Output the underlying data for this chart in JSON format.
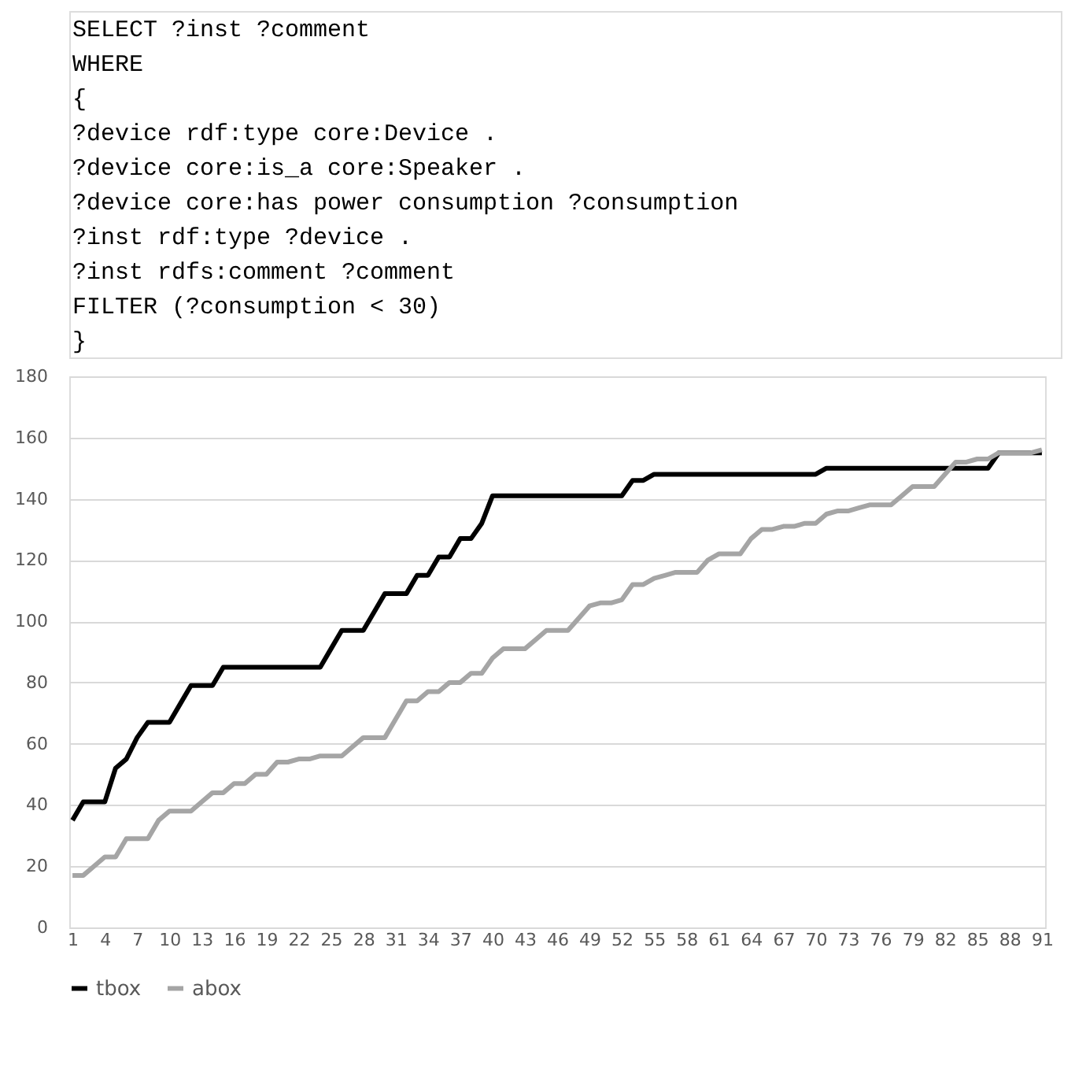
{
  "chart_data": {
    "type": "line",
    "annotations": [
      "SELECT ?inst ?comment",
      "WHERE",
      "{",
      "?device rdf:type core:Device .",
      "?device core:is_a core:Speaker .",
      "?device core:has power consumption ?consumption",
      "?inst rdf:type ?device .",
      "?inst rdfs:comment ?comment",
      "FILTER (?consumption < 30)",
      "}"
    ],
    "categories": [
      "1",
      null,
      null,
      "4",
      null,
      null,
      "7",
      null,
      null,
      "10",
      null,
      null,
      "13",
      null,
      null,
      "16",
      null,
      null,
      "19",
      null,
      null,
      "22",
      null,
      null,
      "25",
      null,
      null,
      "28",
      null,
      null,
      "31",
      null,
      null,
      "34",
      null,
      null,
      "37",
      null,
      null,
      "40",
      null,
      null,
      "43",
      null,
      null,
      "46",
      null,
      null,
      "49",
      null,
      null,
      "52",
      null,
      null,
      "55",
      null,
      null,
      "58",
      null,
      null,
      "61",
      null,
      null,
      "64",
      null,
      null,
      "67",
      null,
      null,
      "70",
      null,
      null,
      "73",
      null,
      null,
      "76",
      null,
      null,
      "79",
      null,
      null,
      "82",
      null,
      null,
      "85",
      null,
      null,
      "88",
      null,
      null,
      "91"
    ],
    "series": [
      {
        "name": "tbox",
        "color": "#000000",
        "values": [
          35,
          41,
          41,
          41,
          52,
          55,
          62,
          67,
          67,
          67,
          73,
          79,
          79,
          79,
          85,
          85,
          85,
          85,
          85,
          85,
          85,
          85,
          85,
          85,
          91,
          97,
          97,
          97,
          103,
          109,
          109,
          109,
          115,
          115,
          121,
          121,
          127,
          127,
          132,
          141,
          141,
          141,
          141,
          141,
          141,
          141,
          141,
          141,
          141,
          141,
          141,
          141,
          146,
          146,
          148,
          148,
          148,
          148,
          148,
          148,
          148,
          148,
          148,
          148,
          148,
          148,
          148,
          148,
          148,
          148,
          150,
          150,
          150,
          150,
          150,
          150,
          150,
          150,
          150,
          150,
          150,
          150,
          150,
          150,
          150,
          150,
          155,
          155,
          155,
          155,
          155
        ]
      },
      {
        "name": "abox",
        "color": "#a5a5a5",
        "values": [
          17,
          17,
          20,
          23,
          23,
          29,
          29,
          29,
          35,
          38,
          38,
          38,
          41,
          44,
          44,
          47,
          47,
          50,
          50,
          54,
          54,
          55,
          55,
          56,
          56,
          56,
          59,
          62,
          62,
          62,
          68,
          74,
          74,
          77,
          77,
          80,
          80,
          83,
          83,
          88,
          91,
          91,
          91,
          94,
          97,
          97,
          97,
          101,
          105,
          106,
          106,
          107,
          112,
          112,
          114,
          115,
          116,
          116,
          116,
          120,
          122,
          122,
          122,
          127,
          130,
          130,
          131,
          131,
          132,
          132,
          135,
          136,
          136,
          137,
          138,
          138,
          138,
          141,
          144,
          144,
          144,
          148,
          152,
          152,
          153,
          153,
          155,
          155,
          155,
          155,
          156
        ]
      }
    ],
    "ylim": [
      0,
      180
    ],
    "yticks": [
      0,
      20,
      40,
      60,
      80,
      100,
      120,
      140,
      160,
      180
    ],
    "grid": "y",
    "legend": "bottom",
    "marker": "none",
    "line_style": "solid"
  }
}
